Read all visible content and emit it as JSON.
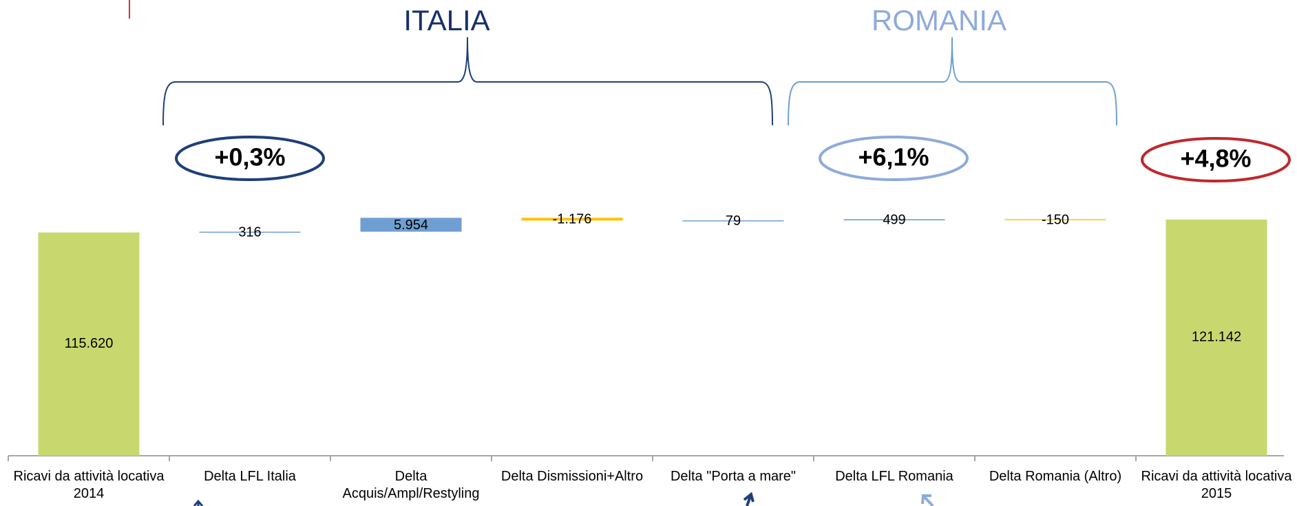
{
  "chart_data": {
    "type": "waterfall",
    "categories": [
      "Ricavi da attività locativa 2014",
      "Delta LFL Italia",
      "Delta Acquis/Ampl/Restyling",
      "Delta Dismissioni+Altro",
      "Delta \"Porta a mare\"",
      "Delta LFL Romania",
      "Delta Romania (Altro)",
      "Ricavi da attività locativa 2015"
    ],
    "measures": [
      "total",
      "relative",
      "relative",
      "relative",
      "relative",
      "relative",
      "relative",
      "total"
    ],
    "values": [
      115620,
      316,
      5954,
      -1176,
      79,
      499,
      -150,
      121142
    ],
    "value_labels": [
      "115.620",
      "316",
      "5.954",
      "-1.176",
      "79",
      "499",
      "-150",
      "121.142"
    ],
    "total_color": "#c8d86f",
    "increase_color": "#6f9fd2",
    "decrease_color": "#ffc000",
    "ylim": [
      20000,
      122000
    ],
    "grid": false,
    "annotations": [
      {
        "text": "ITALIA",
        "color": "#17306b"
      },
      {
        "text": "ROMANIA",
        "color": "#8eaadb"
      },
      {
        "text": "+0,3%",
        "color": "#1f3f7a"
      },
      {
        "text": "+6,1%",
        "color": "#8eaadb"
      },
      {
        "text": "+4,8%",
        "color": "#c0272d"
      }
    ]
  }
}
